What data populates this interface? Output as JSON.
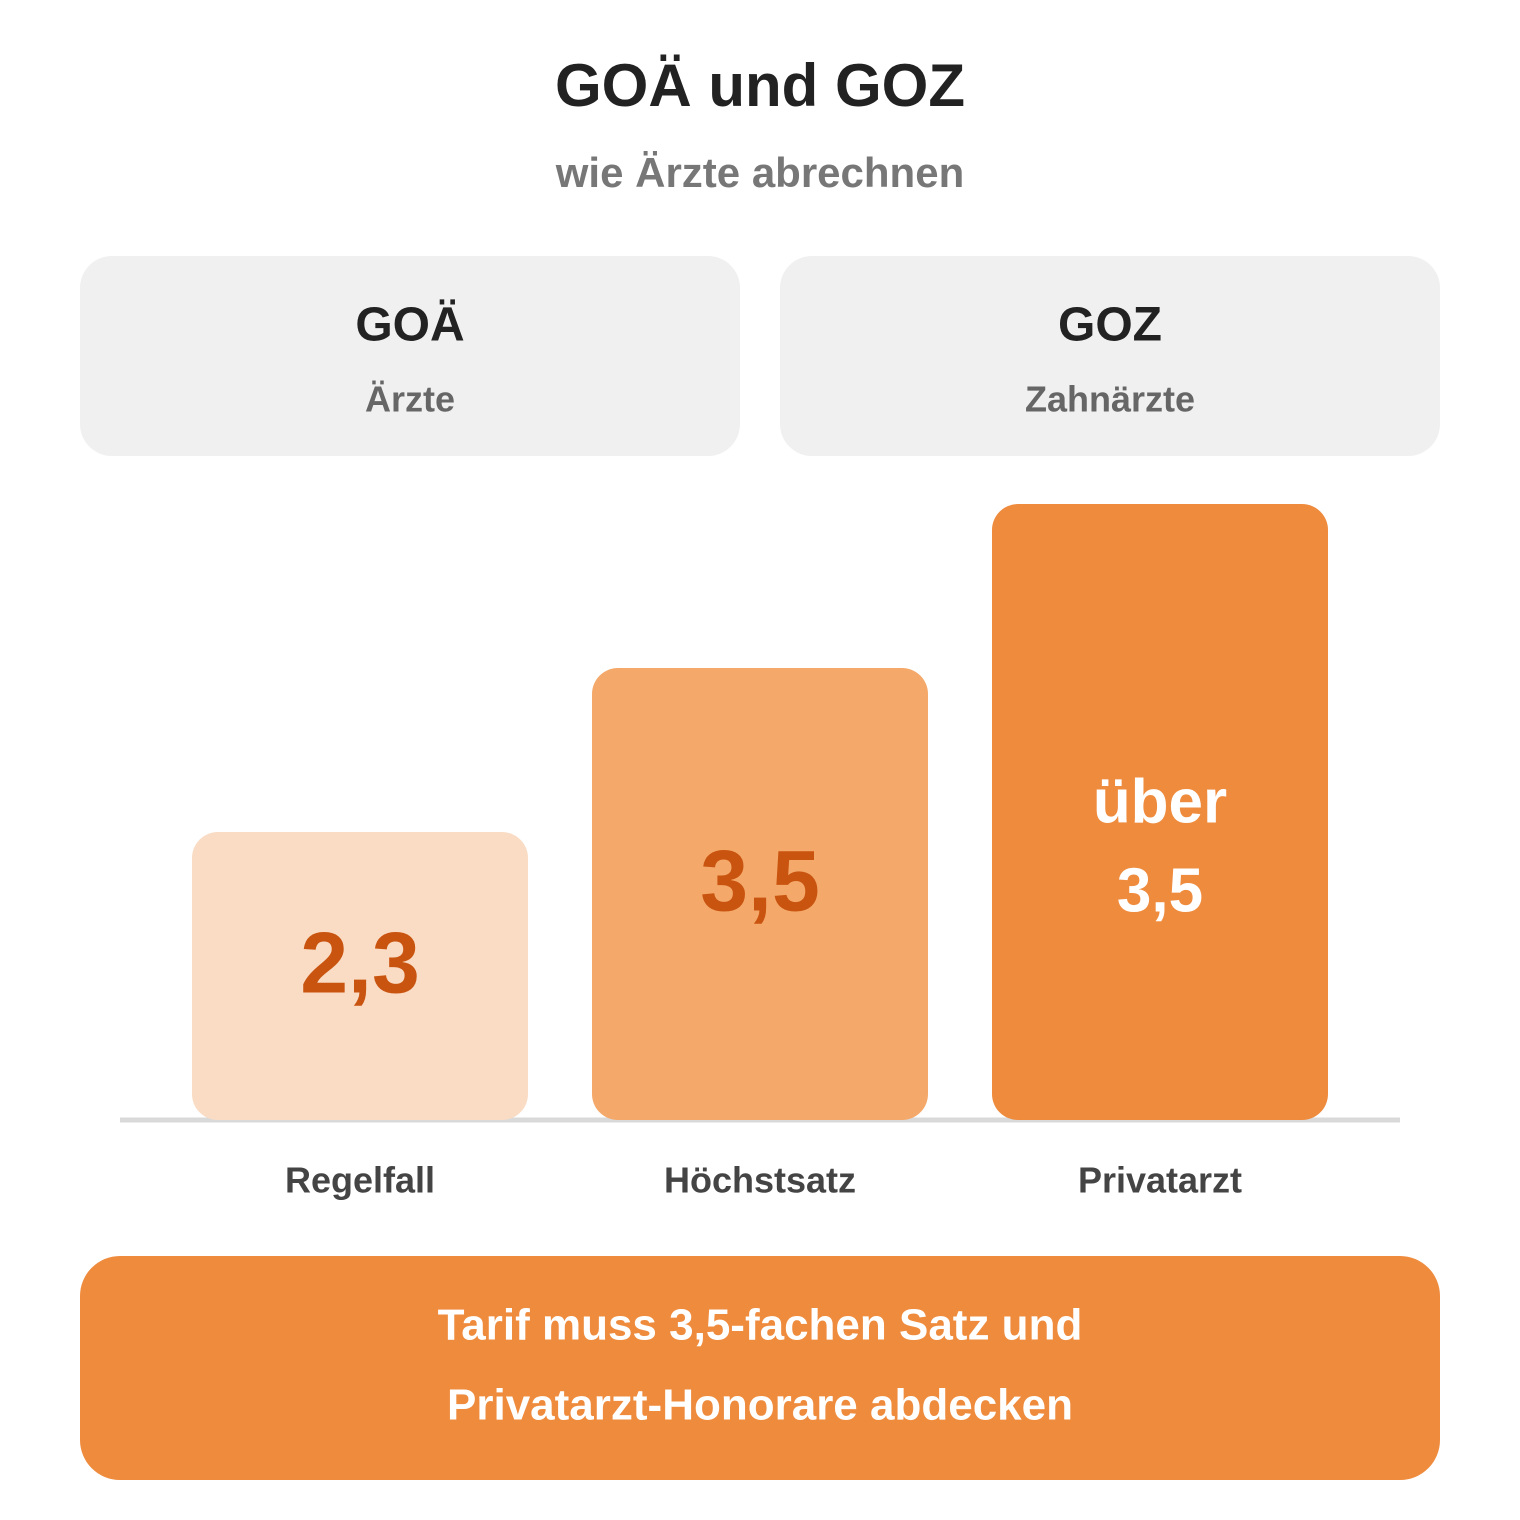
{
  "header": {
    "title": "GOÄ und GOZ",
    "subtitle": "wie Ärzte abrechnen"
  },
  "cards": [
    {
      "title": "GOÄ",
      "subtitle": "Ärzte"
    },
    {
      "title": "GOZ",
      "subtitle": "Zahnärzte"
    }
  ],
  "bars": [
    {
      "label": [
        "2,3"
      ],
      "category": "Regelfall"
    },
    {
      "label": [
        "3,5"
      ],
      "category": "Höchstsatz"
    },
    {
      "label": [
        "über",
        "3,5"
      ],
      "category": "Privatarzt"
    }
  ],
  "footer": [
    "Tarif muss 3,5-fachen Satz und",
    "Privatarzt-Honorare abdecken"
  ]
}
